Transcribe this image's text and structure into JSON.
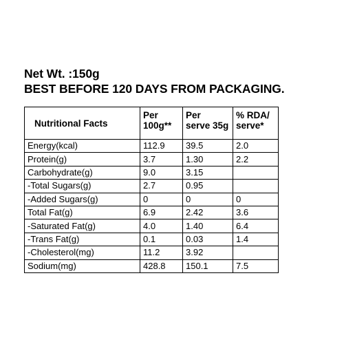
{
  "header": {
    "net_weight": "Net Wt. :150g",
    "best_before": "BEST BEFORE 120 DAYS FROM PACKAGING."
  },
  "table": {
    "headers": {
      "facts": "Nutritional Facts",
      "per100_line1": "Per",
      "per100_line2": "100g**",
      "perserve_line1": "Per",
      "perserve_line2": "serve 35g",
      "rda_line1": "% RDA/",
      "rda_line2": "serve*"
    },
    "rows": [
      {
        "name": "Energy(kcal)",
        "per100": "112.9",
        "perserve": "39.5",
        "rda": "2.0"
      },
      {
        "name": "Protein(g)",
        "per100": "3.7",
        "perserve": "1.30",
        "rda": "2.2"
      },
      {
        "name": "Carbohydrate(g)",
        "per100": "9.0",
        "perserve": "3.15",
        "rda": ""
      },
      {
        "name": "-Total Sugars(g)",
        "per100": "2.7",
        "perserve": "0.95",
        "rda": ""
      },
      {
        "name": "-Added Sugars(g)",
        "per100": "0",
        "perserve": "0",
        "rda": "0"
      },
      {
        "name": "Total Fat(g)",
        "per100": "6.9",
        "perserve": "2.42",
        "rda": "3.6"
      },
      {
        "name": "-Saturated Fat(g)",
        "per100": "4.0",
        "perserve": "1.40",
        "rda": "6.4"
      },
      {
        "name": "-Trans Fat(g)",
        "per100": "0.1",
        "perserve": "0.03",
        "rda": "1.4"
      },
      {
        "name": "-Cholesterol(mg)",
        "per100": "11.2",
        "perserve": "3.92",
        "rda": ""
      },
      {
        "name": "Sodium(mg)",
        "per100": "428.8",
        "perserve": "150.1",
        "rda": "7.5"
      }
    ]
  }
}
